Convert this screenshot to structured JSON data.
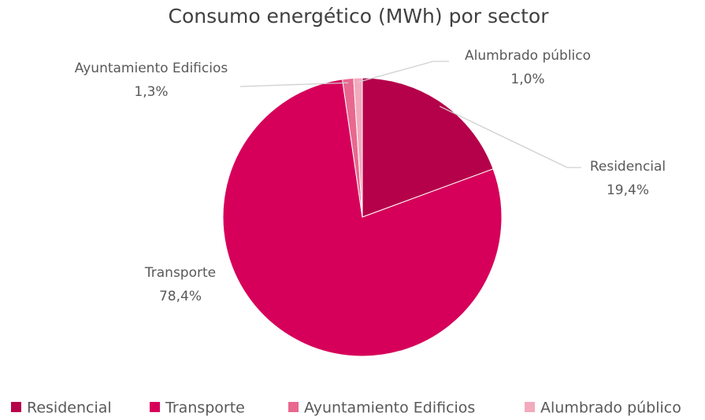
{
  "chart_data": {
    "type": "pie",
    "title": "Consumo energético (MWh) por sector",
    "categories": [
      "Residencial",
      "Transporte",
      "Ayuntamiento Edificios",
      "Alumbrado público"
    ],
    "values": [
      19.4,
      78.4,
      1.3,
      1.0
    ],
    "value_labels": [
      "19,4%",
      "78,4%",
      "1,3%",
      "1,0%"
    ],
    "colors": [
      "#b5004a",
      "#d6005a",
      "#e8688f",
      "#f2aabd"
    ],
    "legend": "bottom"
  }
}
